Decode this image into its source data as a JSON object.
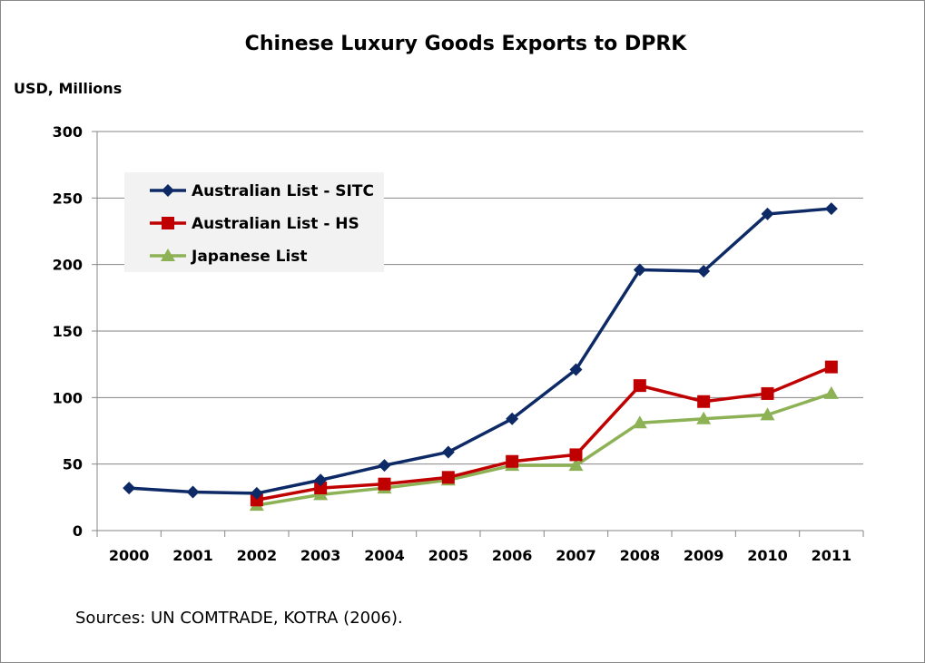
{
  "chart_data": {
    "type": "line",
    "title": "Chinese Luxury Goods Exports to DPRK",
    "ylabel": "USD, Millions",
    "xlabel": "",
    "ylim": [
      0,
      300
    ],
    "yticks": [
      0,
      50,
      100,
      150,
      200,
      250,
      300
    ],
    "categories": [
      "2000",
      "2001",
      "2002",
      "2003",
      "2004",
      "2005",
      "2006",
      "2007",
      "2008",
      "2009",
      "2010",
      "2011"
    ],
    "grid": true,
    "legend_position": "top-left",
    "series": [
      {
        "name": "Australian List - SITC",
        "color": "#0d2a66",
        "marker": "diamond",
        "values": [
          32,
          29,
          28,
          38,
          49,
          59,
          84,
          121,
          196,
          195,
          238,
          242
        ]
      },
      {
        "name": "Australian List - HS",
        "color": "#c00000",
        "marker": "square",
        "values": [
          null,
          null,
          23,
          32,
          35,
          40,
          52,
          57,
          109,
          97,
          103,
          123
        ]
      },
      {
        "name": "Japanese List",
        "color": "#8db255",
        "marker": "triangle",
        "values": [
          null,
          null,
          19,
          27,
          32,
          38,
          49,
          49,
          81,
          84,
          87,
          103
        ]
      }
    ],
    "source_note": "Sources: UN COMTRADE, KOTRA (2006)."
  }
}
